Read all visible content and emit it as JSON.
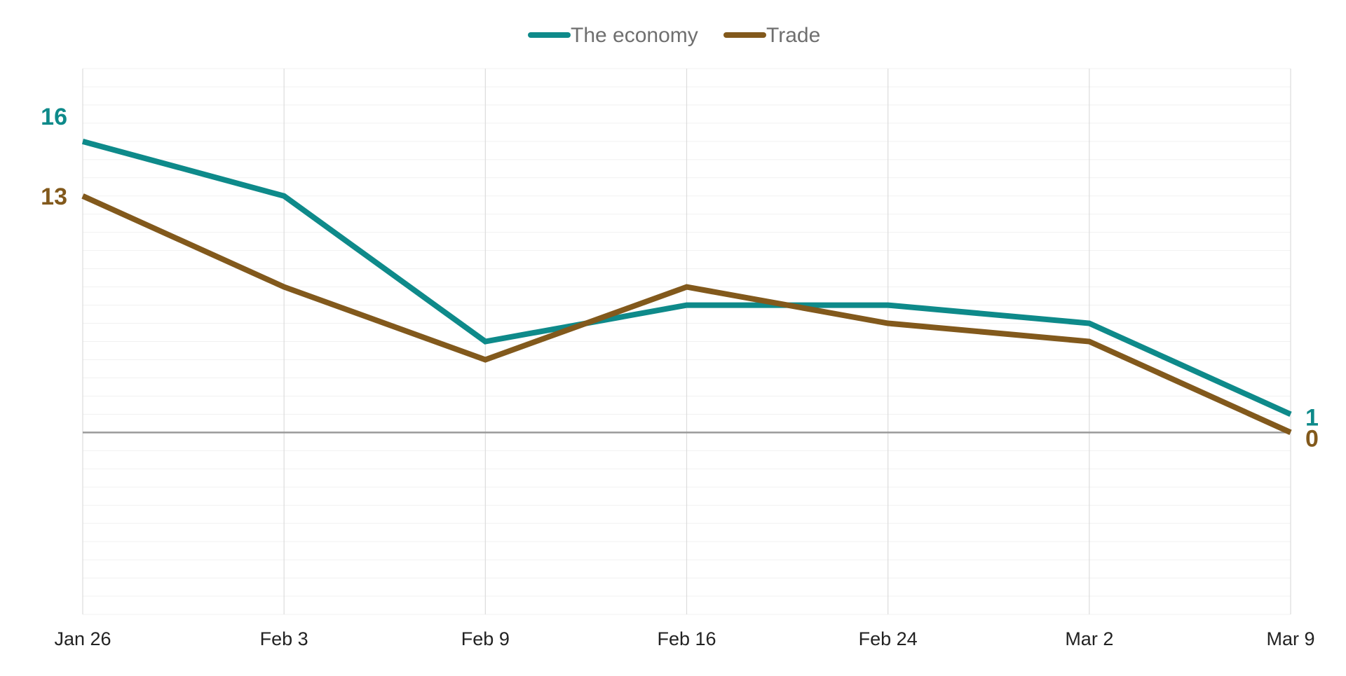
{
  "chart_data": {
    "type": "line",
    "categories": [
      "Jan 26",
      "Feb 3",
      "Feb 9",
      "Feb 16",
      "Feb 24",
      "Mar 2",
      "Mar 9"
    ],
    "series": [
      {
        "name": "The economy",
        "color": "#0e8a8a",
        "values": [
          16,
          13,
          5,
          7,
          7,
          6,
          1
        ],
        "start_label": "16",
        "end_label": "1"
      },
      {
        "name": "Trade",
        "color": "#82591c",
        "values": [
          13,
          8,
          4,
          8,
          6,
          5,
          0
        ],
        "start_label": "13",
        "end_label": "0"
      }
    ],
    "ylim": [
      -10,
      20
    ],
    "zero_line": true,
    "grid": true,
    "legend": "top-center"
  }
}
